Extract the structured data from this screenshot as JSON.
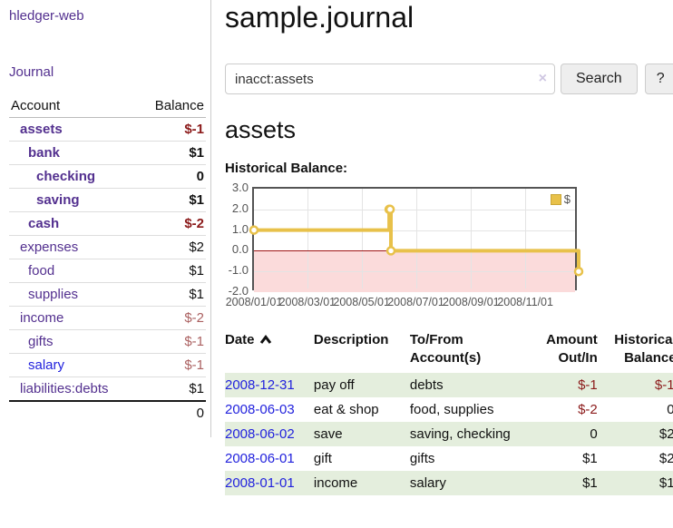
{
  "app": {
    "brand": "hledger-web",
    "nav_journal": "Journal"
  },
  "sidebar": {
    "header": {
      "account": "Account",
      "balance": "Balance"
    },
    "accounts": [
      {
        "name": "assets",
        "balance": "$-1",
        "depth": 0,
        "emphasized": true,
        "negative": "dark"
      },
      {
        "name": "bank",
        "balance": "$1",
        "depth": 1,
        "emphasized": true,
        "negative": null
      },
      {
        "name": "checking",
        "balance": "0",
        "depth": 2,
        "emphasized": true,
        "negative": null
      },
      {
        "name": "saving",
        "balance": "$1",
        "depth": 2,
        "emphasized": true,
        "negative": null
      },
      {
        "name": "cash",
        "balance": "$-2",
        "depth": 1,
        "emphasized": true,
        "negative": "dark"
      },
      {
        "name": "expenses",
        "balance": "$2",
        "depth": 0,
        "emphasized": false,
        "negative": null
      },
      {
        "name": "food",
        "balance": "$1",
        "depth": 1,
        "emphasized": false,
        "negative": null
      },
      {
        "name": "supplies",
        "balance": "$1",
        "depth": 1,
        "emphasized": false,
        "negative": null
      },
      {
        "name": "income",
        "balance": "$-2",
        "depth": 0,
        "emphasized": false,
        "negative": "light"
      },
      {
        "name": "gifts",
        "balance": "$-1",
        "depth": 1,
        "emphasized": false,
        "negative": "light"
      },
      {
        "name": "salary",
        "balance": "$-1",
        "depth": 1,
        "emphasized": false,
        "negative": "light"
      },
      {
        "name": "liabilities:debts",
        "balance": "$1",
        "depth": 0,
        "emphasized": false,
        "negative": null
      }
    ],
    "total": "0"
  },
  "header": {
    "title": "sample.journal"
  },
  "search": {
    "value": "inacct:assets",
    "placeholder": "",
    "clear_icon": "×",
    "button_label": "Search",
    "help_label": "?"
  },
  "account_page": {
    "title": "assets",
    "chart_label": "Historical Balance:"
  },
  "chart_data": {
    "type": "line",
    "style": "step",
    "series_name": "$",
    "series_color": "#e8c14a",
    "negative_fill": "#fbdbdb",
    "zero_line_color": "#9e1616",
    "grid": true,
    "legend_position": "top-right",
    "ylim": [
      -2.0,
      3.0
    ],
    "xlim_days": [
      0,
      365
    ],
    "yticks": [
      {
        "label": "3.0",
        "value": 3
      },
      {
        "label": "2.0",
        "value": 2
      },
      {
        "label": "1.0",
        "value": 1
      },
      {
        "label": "0.0",
        "value": 0
      },
      {
        "label": "-1.0",
        "value": -1
      },
      {
        "label": "-2.0",
        "value": -2
      }
    ],
    "xticks": [
      {
        "label": "2008/01/01",
        "day": 0
      },
      {
        "label": "2008/03/01",
        "day": 60
      },
      {
        "label": "2008/05/01",
        "day": 121
      },
      {
        "label": "2008/07/01",
        "day": 182
      },
      {
        "label": "2008/09/01",
        "day": 244
      },
      {
        "label": "2008/11/01",
        "day": 305
      }
    ],
    "points": [
      {
        "date": "2008-01-01",
        "day": 0,
        "value": 1
      },
      {
        "date": "2008-06-01",
        "day": 152,
        "value": 2
      },
      {
        "date": "2008-06-02",
        "day": 153,
        "value": 2
      },
      {
        "date": "2008-06-03",
        "day": 154,
        "value": 0
      },
      {
        "date": "2008-12-31",
        "day": 365,
        "value": -1
      }
    ]
  },
  "register": {
    "columns": {
      "date": "Date",
      "description": "Description",
      "accounts": "To/From Account(s)",
      "amount": "Amount Out/In",
      "balance": "Historical Balance"
    },
    "sort": {
      "column": "date",
      "direction": "ascending"
    },
    "rows": [
      {
        "date": "2008-12-31",
        "description": "pay off",
        "accounts": "debts",
        "amount": "$-1",
        "balance": "$-1"
      },
      {
        "date": "2008-06-03",
        "description": "eat & shop",
        "accounts": "food, supplies",
        "amount": "$-2",
        "balance": "0"
      },
      {
        "date": "2008-06-02",
        "description": "save",
        "accounts": "saving, checking",
        "amount": "0",
        "balance": "$2"
      },
      {
        "date": "2008-06-01",
        "description": "gift",
        "accounts": "gifts",
        "amount": "$1",
        "balance": "$2"
      },
      {
        "date": "2008-01-01",
        "description": "income",
        "accounts": "salary",
        "amount": "$1",
        "balance": "$1"
      }
    ]
  },
  "colors": {
    "link_purple": "#53308f",
    "link_blue": "#2222dd",
    "negative_dark_red": "#8b1a1a",
    "negative_light_red": "#ab6161",
    "row_green": "#e4eedd"
  }
}
